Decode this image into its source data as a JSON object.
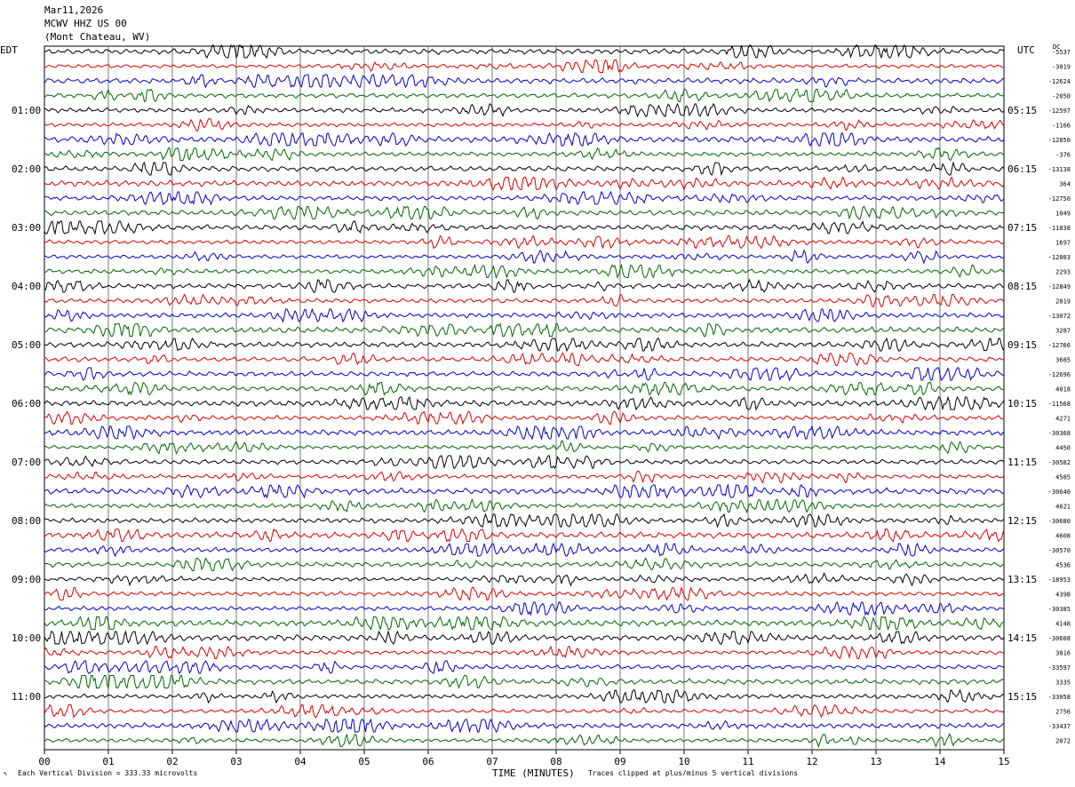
{
  "header": {
    "date": "Mar11,2026",
    "station": "MCWV HHZ US 00",
    "location": "(Mont Chateau, WV)"
  },
  "left_tz": "EDT",
  "right_tz": "UTC",
  "corner_mark": "DC",
  "footer": {
    "scale_note": "Each Vertical Division =  333.33 microvolts",
    "xlabel": "TIME (MINUTES)",
    "clip_note": "Traces clipped at plus/minus 5 vertical divisions"
  },
  "colors": {
    "trace_cycle": [
      "#000000",
      "#dd0000",
      "#0000cc",
      "#006600"
    ],
    "grid": "#777777"
  },
  "chart_data": {
    "type": "line",
    "title": "",
    "xlabel": "TIME (MINUTES)",
    "xlim": [
      0,
      15
    ],
    "x_ticks": [
      "00",
      "01",
      "02",
      "03",
      "04",
      "05",
      "06",
      "07",
      "08",
      "09",
      "10",
      "11",
      "12",
      "13",
      "14",
      "15"
    ],
    "grid": true,
    "rows_per_hour": 4,
    "hours_left": [
      "01:00",
      "02:00",
      "03:00",
      "04:00",
      "05:00",
      "06:00",
      "07:00",
      "08:00",
      "09:00",
      "10:00",
      "11:00"
    ],
    "hours_right": [
      "05:15",
      "06:15",
      "07:15",
      "08:15",
      "09:15",
      "10:15",
      "11:15",
      "12:15",
      "13:15",
      "14:15",
      "15:15"
    ],
    "row_offsets": [
      "-5537",
      "-3019",
      "-12624",
      "-2050",
      "-12597",
      "-1166",
      "-12850",
      "-376",
      "-13138",
      "364",
      "-12750",
      "1049",
      "-11838",
      "1697",
      "-12003",
      "2293",
      "-12849",
      "2819",
      "-13072",
      "3287",
      "-12766",
      "3685",
      "-12696",
      "4018",
      "-11568",
      "4271",
      "-30368",
      "4450",
      "-30582",
      "4585",
      "-30640",
      "4621",
      "-30680",
      "4608",
      "-30570",
      "4536",
      "-18953",
      "4398",
      "-30385",
      "4148",
      "-30608",
      "3816",
      "-33597",
      "3335",
      "-33058",
      "2756",
      "-33437",
      "2072"
    ]
  }
}
